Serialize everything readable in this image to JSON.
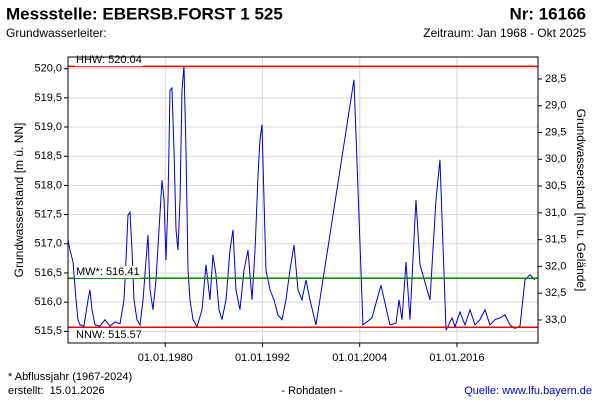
{
  "chart_data": {
    "type": "line",
    "title": "Messstelle: EBERSB.FORST 1 525",
    "number_label": "Nr: 16166",
    "subtitle": "Grundwasserleiter:",
    "period": "Zeitraum: Jan 1968 - Okt 2025",
    "y_label": "Grundwasserstand [m ü. NN]",
    "y2_label": "Grundwasserstand [m u. Gelände]",
    "footnote": "* Abflussjahr (1967-2024)",
    "created": "erstellt:  15.01.2026",
    "data_kind": "- Rohdaten -",
    "source": "Quelle: www.lfu.bayern.de",
    "grid": true,
    "xlim": [
      1968.0,
      2026.0
    ],
    "xticks": [
      {
        "value": 1980,
        "label": "01.01.1980"
      },
      {
        "value": 1992,
        "label": "01.01.1992"
      },
      {
        "value": 2004,
        "label": "01.01.2004"
      },
      {
        "value": 2016,
        "label": "01.01.2016"
      }
    ],
    "ylim": [
      515.3,
      520.2
    ],
    "yticks": [
      {
        "value": 515.5,
        "label": "515,5"
      },
      {
        "value": 516.0,
        "label": "516,0"
      },
      {
        "value": 516.5,
        "label": "516,5"
      },
      {
        "value": 517.0,
        "label": "517,0"
      },
      {
        "value": 517.5,
        "label": "517,5"
      },
      {
        "value": 518.0,
        "label": "518,0"
      },
      {
        "value": 518.5,
        "label": "518,5"
      },
      {
        "value": 519.0,
        "label": "519,0"
      },
      {
        "value": 519.5,
        "label": "519,5"
      },
      {
        "value": 520.0,
        "label": "520,0"
      }
    ],
    "y2lim": [
      33.43,
      28.09
    ],
    "y2ticks": [
      {
        "value": 33.0,
        "label": "33,0"
      },
      {
        "value": 32.5,
        "label": "32,5"
      },
      {
        "value": 32.0,
        "label": "32,0"
      },
      {
        "value": 31.5,
        "label": "31,5"
      },
      {
        "value": 31.0,
        "label": "31,0"
      },
      {
        "value": 30.5,
        "label": "30,5"
      },
      {
        "value": 30.0,
        "label": "30,0"
      },
      {
        "value": 29.5,
        "label": "29,5"
      },
      {
        "value": 29.0,
        "label": "29,0"
      },
      {
        "value": 28.5,
        "label": "28,5"
      }
    ],
    "reference_lines": [
      {
        "label": "HHW: 520.04",
        "value": 520.04,
        "color": "#e00000"
      },
      {
        "label": "MW*: 516.41",
        "value": 516.41,
        "color": "#008000"
      },
      {
        "label": "NNW: 515.57",
        "value": 515.57,
        "color": "#e00000"
      }
    ],
    "x": [
      1968.0,
      1968.25,
      1968.62,
      1968.99,
      1969.23,
      1969.48,
      1969.97,
      1970.47,
      1970.71,
      1970.96,
      1971.33,
      1971.95,
      1972.57,
      1973.18,
      1973.8,
      1974.42,
      1974.91,
      1975.16,
      1975.4,
      1975.65,
      1975.9,
      1976.14,
      1976.51,
      1976.88,
      1977.26,
      1977.63,
      1977.87,
      1978.12,
      1978.49,
      1978.86,
      1979.23,
      1979.6,
      1979.85,
      1980.09,
      1980.34,
      1980.59,
      1980.83,
      1981.08,
      1981.33,
      1981.57,
      1981.82,
      1982.07,
      1982.31,
      1982.56,
      1982.81,
      1983.05,
      1983.43,
      1983.92,
      1984.54,
      1985.03,
      1985.52,
      1985.89,
      1986.26,
      1986.63,
      1987.0,
      1987.5,
      1987.99,
      1988.36,
      1988.73,
      1989.22,
      1989.72,
      1990.21,
      1990.71,
      1991.08,
      1991.45,
      1991.69,
      1991.94,
      1992.19,
      1992.43,
      1992.93,
      1993.42,
      1993.91,
      1994.41,
      1994.9,
      1995.39,
      1995.89,
      1996.38,
      1996.88,
      1997.37,
      1997.86,
      1998.6,
      2003.29,
      2004.4,
      2005.51,
      2006.62,
      2007.73,
      2008.48,
      2008.85,
      2009.22,
      2009.71,
      2010.2,
      2010.94,
      2011.44,
      2012.67,
      2013.41,
      2013.9,
      2014.65,
      2015.39,
      2015.76,
      2016.37,
      2016.99,
      2017.61,
      2018.22,
      2018.84,
      2019.46,
      2020.07,
      2020.69,
      2021.31,
      2021.93,
      2022.54,
      2023.16,
      2023.78,
      2024.39,
      2025.01,
      2025.63
    ],
    "series": [
      {
        "name": "Grundwasserstand",
        "color": "#0000cc",
        "values": [
          517.07,
          516.89,
          516.69,
          516.04,
          515.7,
          515.61,
          515.59,
          516.04,
          516.21,
          515.87,
          515.61,
          515.59,
          515.7,
          515.59,
          515.66,
          515.63,
          516.04,
          516.72,
          517.49,
          517.54,
          516.89,
          516.04,
          515.7,
          515.61,
          516.04,
          516.72,
          517.15,
          516.21,
          515.87,
          516.38,
          517.24,
          518.09,
          517.75,
          516.72,
          517.75,
          519.63,
          519.67,
          518.61,
          517.24,
          516.89,
          517.75,
          519.63,
          520.05,
          518.61,
          516.55,
          516.04,
          515.7,
          515.58,
          515.87,
          516.64,
          516.04,
          516.81,
          516.47,
          515.87,
          515.7,
          516.04,
          516.89,
          517.24,
          516.21,
          515.87,
          516.55,
          516.89,
          516.04,
          516.89,
          518.18,
          518.78,
          519.04,
          517.75,
          516.55,
          516.21,
          516.04,
          515.78,
          515.7,
          516.04,
          516.55,
          516.98,
          516.21,
          516.04,
          516.38,
          516.04,
          515.61,
          519.81,
          515.61,
          515.73,
          516.29,
          515.61,
          515.64,
          516.04,
          515.7,
          516.69,
          515.7,
          517.75,
          516.64,
          516.04,
          517.75,
          518.44,
          515.52,
          515.73,
          515.58,
          515.83,
          515.61,
          515.87,
          515.61,
          515.7,
          515.87,
          515.61,
          515.7,
          515.73,
          515.78,
          515.61,
          515.55,
          515.59,
          516.38,
          516.47,
          516.38
        ]
      }
    ]
  }
}
